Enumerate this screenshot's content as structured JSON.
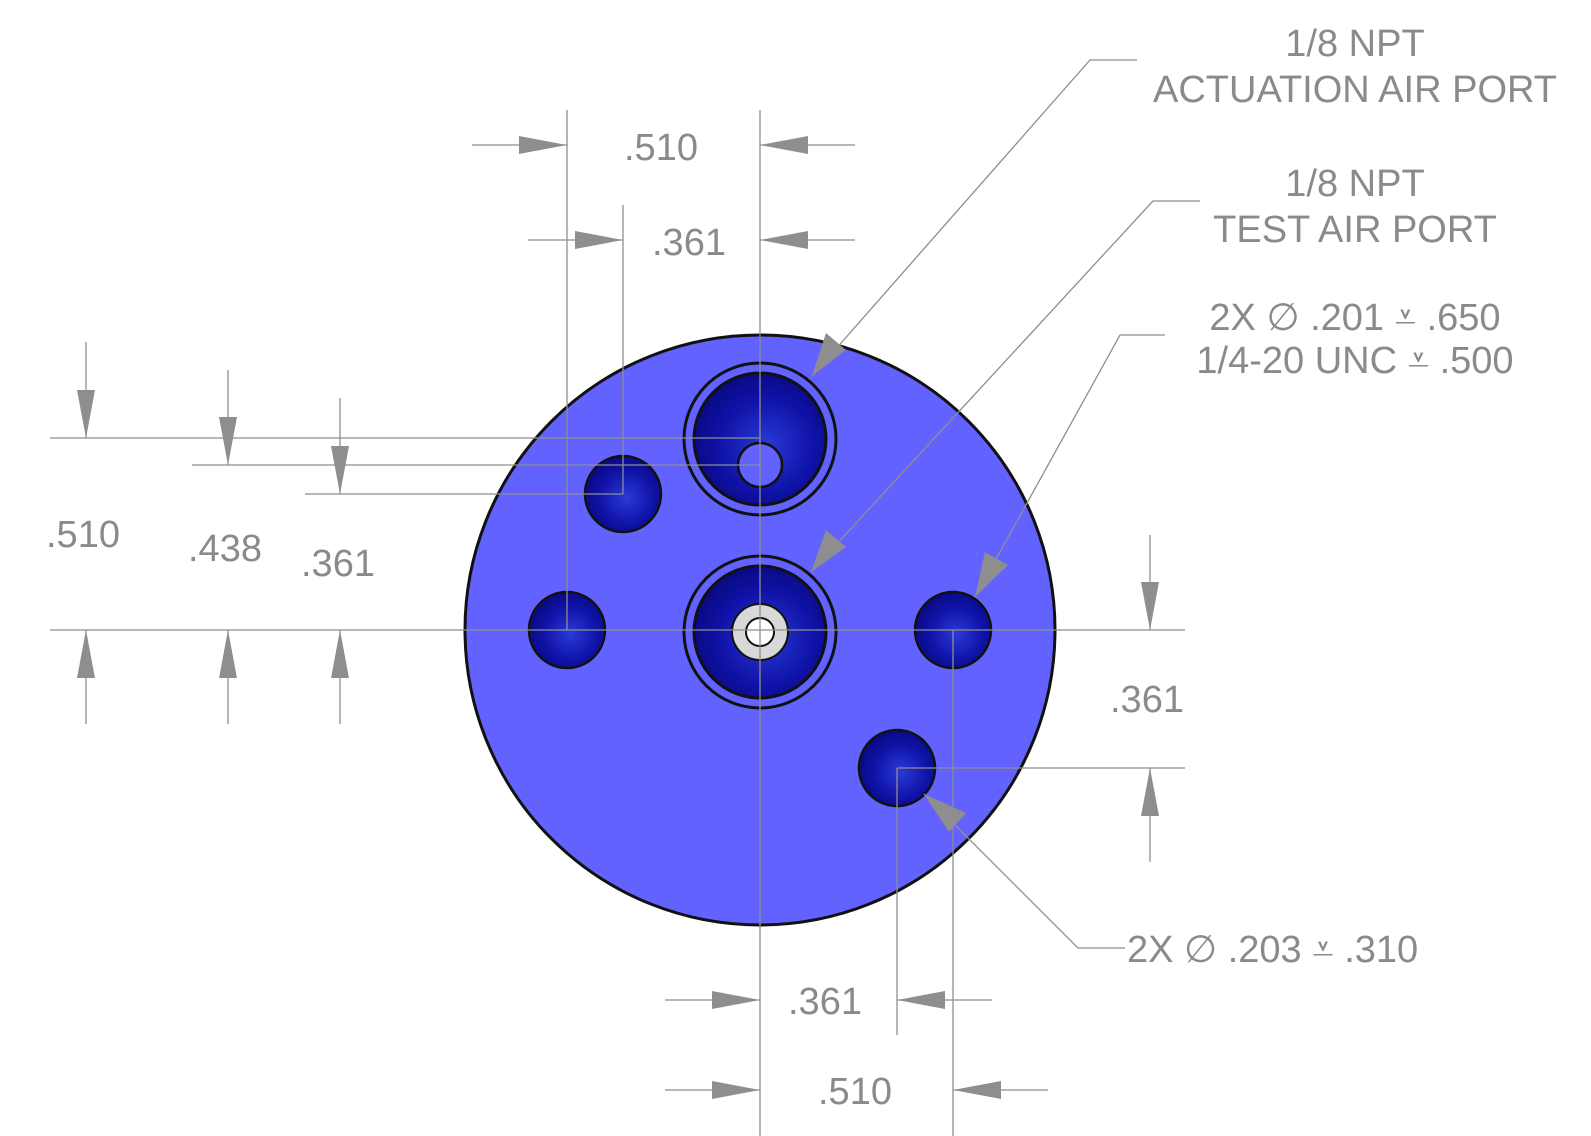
{
  "notes": {
    "actuation_port": {
      "line1": "1/8 NPT",
      "line2": "ACTUATION AIR PORT"
    },
    "test_port": {
      "line1": "1/8 NPT",
      "line2": "TEST AIR PORT"
    },
    "tapped_holes": {
      "line1": "2X ∅ .201 ⩡ .650",
      "line2": "1/4-20 UNC  ⩡ .500"
    },
    "drilled_holes": {
      "line1": "2X ∅ .203 ⩡ .310"
    }
  },
  "dimensions": {
    "top_outer": ".510",
    "top_inner": ".361",
    "left_outer": ".510",
    "left_middle": ".438",
    "left_inner": ".361",
    "right_vertical": ".361",
    "bottom_inner": ".361",
    "bottom_outer": ".510"
  },
  "colors": {
    "face": "#6060ff",
    "hole": "#0c0ca0",
    "bore": "#dcdcdc",
    "dimension": "#8e8e8e"
  }
}
